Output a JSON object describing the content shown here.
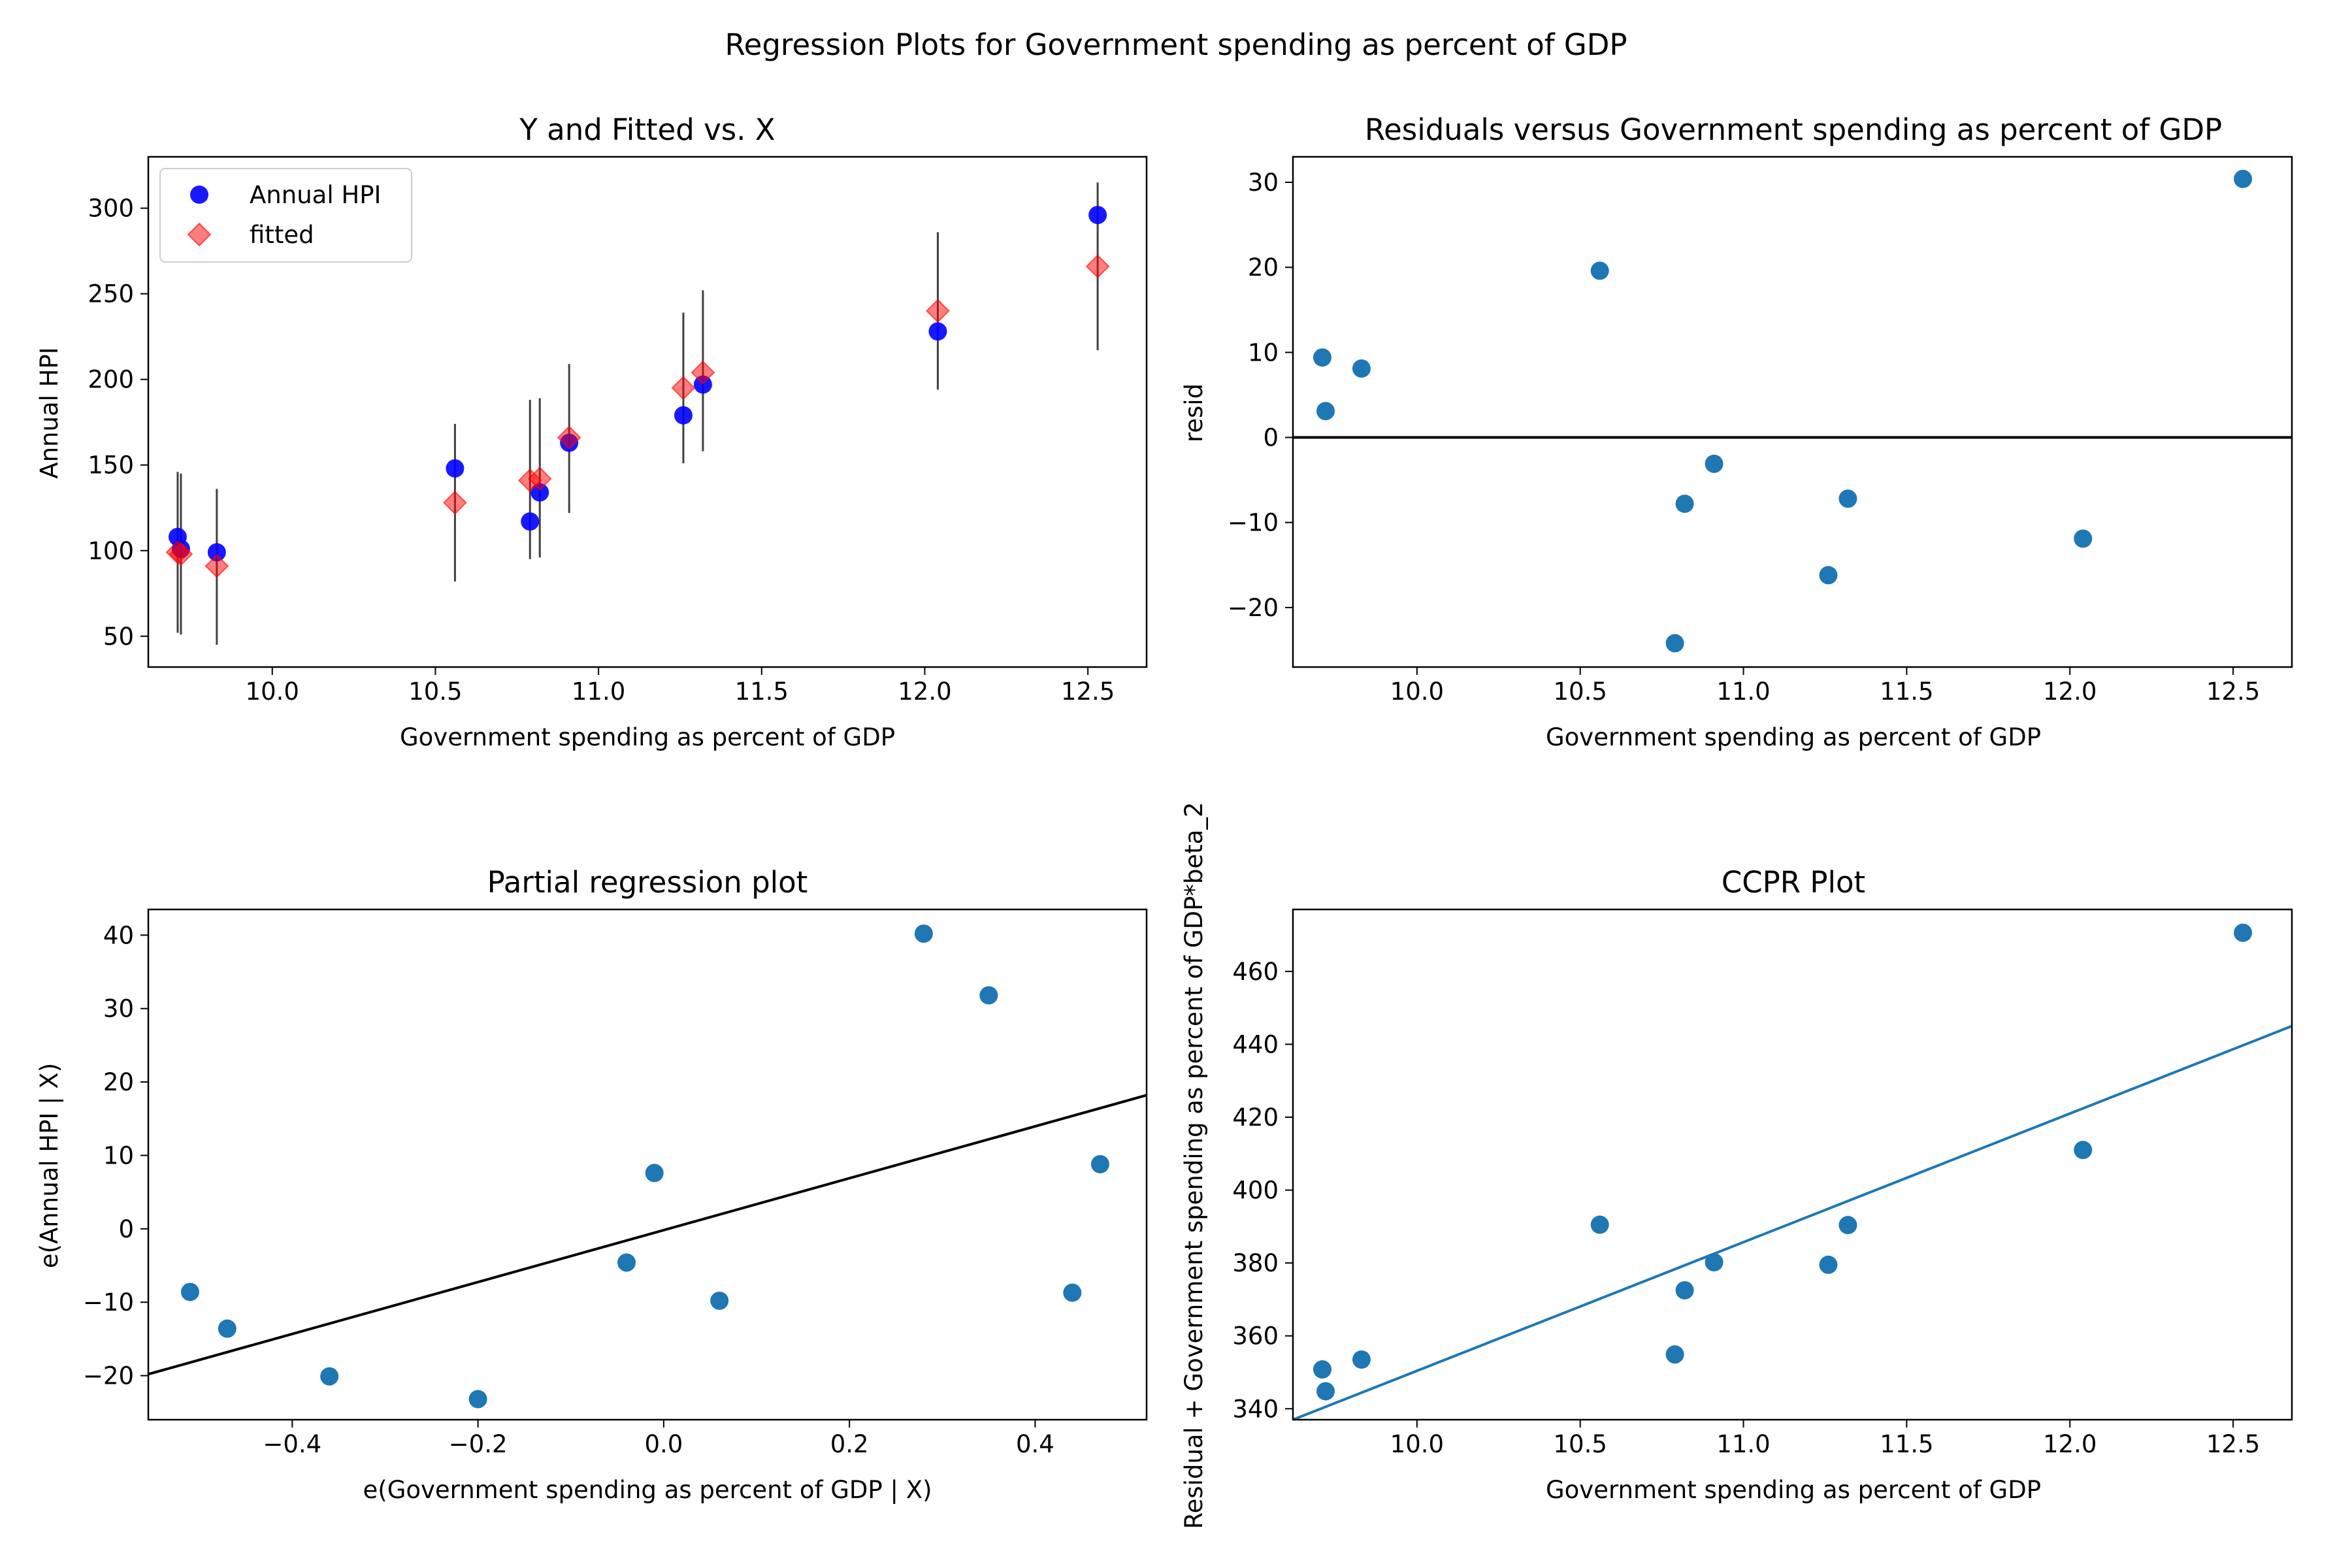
{
  "figure": {
    "suptitle": "Regression Plots for Government spending as percent of GDP"
  },
  "colors": {
    "actual": "#0000ff",
    "fitted": "#ff0000",
    "points": "#1f77b4",
    "ccpr_line": "#1f77b4",
    "zero_line": "#000000",
    "errorbar": "#000000"
  },
  "chart_data": [
    {
      "id": "fit",
      "type": "scatter",
      "title": "Y and Fitted vs. X",
      "xlabel": "Government spending as percent of GDP",
      "ylabel": "Annual HPI",
      "xlim": [
        9.62,
        12.68
      ],
      "ylim": [
        32,
        330
      ],
      "xticks": [
        10.0,
        10.5,
        11.0,
        11.5,
        12.0,
        12.5
      ],
      "yticks": [
        50,
        100,
        150,
        200,
        250,
        300
      ],
      "xtick_labels": [
        "10.0",
        "10.5",
        "11.0",
        "11.5",
        "12.0",
        "12.5"
      ],
      "ytick_labels": [
        "50",
        "100",
        "150",
        "200",
        "250",
        "300"
      ],
      "legend": {
        "position": "top-left",
        "entries": [
          "Annual HPI",
          "fitted"
        ]
      },
      "x": [
        9.71,
        9.72,
        9.83,
        10.56,
        10.79,
        10.82,
        10.91,
        11.26,
        11.32,
        12.04,
        12.53
      ],
      "series": [
        {
          "name": "Annual HPI",
          "marker": "circle",
          "values": [
            108,
            101,
            99,
            148,
            117,
            134,
            163,
            179,
            197,
            228,
            296
          ]
        },
        {
          "name": "fitted",
          "marker": "diamond",
          "values": [
            99,
            98,
            91,
            128,
            141,
            142,
            166,
            195,
            204,
            240,
            266
          ]
        }
      ],
      "errorbars": [
        [
          52,
          146
        ],
        [
          51,
          145
        ],
        [
          45,
          136
        ],
        [
          82,
          174
        ],
        [
          95,
          188
        ],
        [
          96,
          189
        ],
        [
          122,
          209
        ],
        [
          151,
          239
        ],
        [
          158,
          252
        ],
        [
          194,
          286
        ],
        [
          217,
          315
        ]
      ]
    },
    {
      "id": "resid",
      "type": "scatter",
      "title": "Residuals versus Government spending as percent of GDP",
      "xlabel": "Government spending as percent of GDP",
      "ylabel": "resid",
      "xlim": [
        9.62,
        12.68
      ],
      "ylim": [
        -27,
        33
      ],
      "xticks": [
        10.0,
        10.5,
        11.0,
        11.5,
        12.0,
        12.5
      ],
      "yticks": [
        -20,
        -10,
        0,
        10,
        20,
        30
      ],
      "xtick_labels": [
        "10.0",
        "10.5",
        "11.0",
        "11.5",
        "12.0",
        "12.5"
      ],
      "ytick_labels": [
        "−20",
        "−10",
        "0",
        "10",
        "20",
        "30"
      ],
      "hline": 0,
      "x": [
        9.71,
        9.72,
        9.83,
        10.56,
        10.79,
        10.82,
        10.91,
        11.26,
        11.32,
        12.04,
        12.53
      ],
      "y": [
        9.4,
        3.1,
        8.1,
        19.6,
        -24.2,
        -7.8,
        -3.1,
        -16.2,
        -7.2,
        -11.9,
        30.4
      ]
    },
    {
      "id": "partreg",
      "type": "scatter",
      "title": "Partial regression plot",
      "xlabel": "e(Government spending as percent of GDP | X)",
      "ylabel": "e(Annual HPI | X)",
      "xlim": [
        -0.555,
        0.52
      ],
      "ylim": [
        -26,
        43.5
      ],
      "xticks": [
        -0.4,
        -0.2,
        0.0,
        0.2,
        0.4
      ],
      "yticks": [
        -20,
        -10,
        0,
        10,
        20,
        30,
        40
      ],
      "xtick_labels": [
        "−0.4",
        "−0.2",
        "0.0",
        "0.2",
        "0.4"
      ],
      "ytick_labels": [
        "−20",
        "−10",
        "0",
        "10",
        "20",
        "30",
        "40"
      ],
      "fit_line": {
        "x": [
          -0.555,
          0.52
        ],
        "y": [
          -19.8,
          18.2
        ]
      },
      "x": [
        -0.51,
        -0.47,
        -0.36,
        -0.2,
        -0.04,
        -0.01,
        0.06,
        0.28,
        0.35,
        0.44,
        0.47
      ],
      "y": [
        -8.6,
        -13.6,
        -20.1,
        -23.2,
        -4.6,
        7.6,
        -9.8,
        40.2,
        31.8,
        -8.7,
        8.8
      ]
    },
    {
      "id": "ccpr",
      "type": "scatter",
      "title": "CCPR Plot",
      "xlabel": "Government spending as percent of GDP",
      "ylabel": "Residual + Government spending as percent of GDP*beta_2",
      "xlim": [
        9.62,
        12.68
      ],
      "ylim": [
        337,
        477
      ],
      "xticks": [
        10.0,
        10.5,
        11.0,
        11.5,
        12.0,
        12.5
      ],
      "yticks": [
        340,
        360,
        380,
        400,
        420,
        440,
        460
      ],
      "xtick_labels": [
        "10.0",
        "10.5",
        "11.0",
        "11.5",
        "12.0",
        "12.5"
      ],
      "ytick_labels": [
        "340",
        "360",
        "380",
        "400",
        "420",
        "440",
        "460"
      ],
      "fit_line": {
        "x": [
          9.62,
          12.68
        ],
        "y": [
          337,
          445
        ]
      },
      "x": [
        9.71,
        9.72,
        9.83,
        10.56,
        10.79,
        10.82,
        10.91,
        11.26,
        11.32,
        12.04,
        12.53
      ],
      "y": [
        350.8,
        344.8,
        353.5,
        390.5,
        354.9,
        372.5,
        380.2,
        379.5,
        390.4,
        411.0,
        470.6
      ]
    }
  ]
}
